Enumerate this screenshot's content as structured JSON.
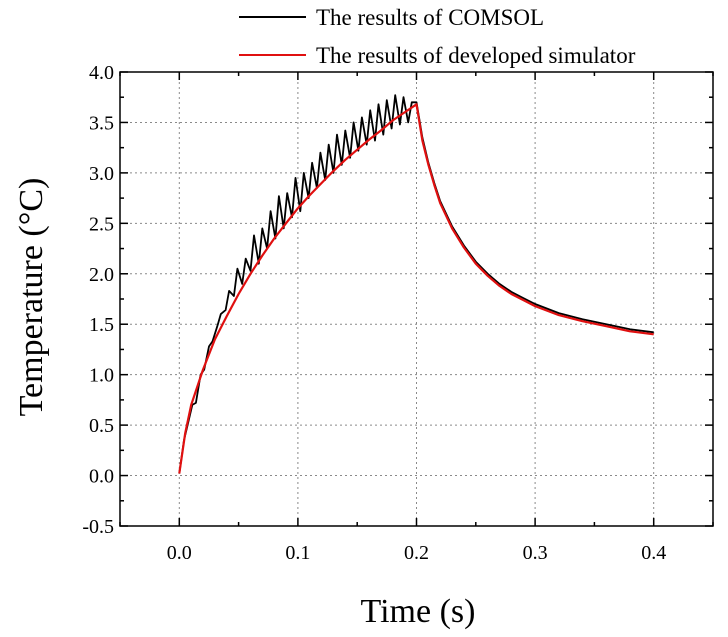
{
  "chart_data": {
    "type": "line",
    "title": "",
    "xlabel": "Time (s)",
    "ylabel": "Temperature (°C)",
    "xlim": [
      -0.05,
      0.45
    ],
    "ylim": [
      -0.5,
      4.0
    ],
    "x_ticks": [
      0.0,
      0.1,
      0.2,
      0.3,
      0.4
    ],
    "x_tick_labels": [
      "0.0",
      "0.1",
      "0.2",
      "0.3",
      "0.4"
    ],
    "y_ticks": [
      -0.5,
      0.0,
      0.5,
      1.0,
      1.5,
      2.0,
      2.5,
      3.0,
      3.5,
      4.0
    ],
    "y_tick_labels": [
      "-0.5",
      "0.0",
      "0.5",
      "1.0",
      "1.5",
      "2.0",
      "2.5",
      "3.0",
      "3.5",
      "4.0"
    ],
    "grid": true,
    "legend_position": "top-right",
    "series": [
      {
        "name": "The results of COMSOL",
        "color": "#000000",
        "x": [
          0.0,
          0.004,
          0.007,
          0.011,
          0.014,
          0.018,
          0.021,
          0.025,
          0.028,
          0.032,
          0.035,
          0.039,
          0.042,
          0.046,
          0.049,
          0.053,
          0.056,
          0.06,
          0.063,
          0.067,
          0.07,
          0.074,
          0.077,
          0.081,
          0.084,
          0.088,
          0.091,
          0.095,
          0.098,
          0.102,
          0.105,
          0.109,
          0.112,
          0.116,
          0.119,
          0.123,
          0.126,
          0.13,
          0.133,
          0.137,
          0.14,
          0.144,
          0.147,
          0.151,
          0.154,
          0.158,
          0.161,
          0.165,
          0.168,
          0.172,
          0.175,
          0.179,
          0.182,
          0.186,
          0.189,
          0.193,
          0.196,
          0.2,
          0.205,
          0.21,
          0.215,
          0.22,
          0.23,
          0.24,
          0.25,
          0.26,
          0.27,
          0.28,
          0.29,
          0.3,
          0.32,
          0.34,
          0.36,
          0.38,
          0.4
        ],
        "y": [
          0.02,
          0.35,
          0.5,
          0.7,
          0.72,
          1.0,
          1.05,
          1.28,
          1.33,
          1.48,
          1.6,
          1.64,
          1.83,
          1.78,
          2.05,
          1.9,
          2.15,
          2.03,
          2.38,
          2.1,
          2.45,
          2.25,
          2.62,
          2.35,
          2.77,
          2.45,
          2.8,
          2.56,
          2.95,
          2.62,
          3.0,
          2.75,
          3.1,
          2.85,
          3.2,
          2.93,
          3.28,
          3.0,
          3.38,
          3.08,
          3.42,
          3.15,
          3.5,
          3.22,
          3.55,
          3.28,
          3.62,
          3.32,
          3.68,
          3.38,
          3.72,
          3.44,
          3.77,
          3.48,
          3.75,
          3.5,
          3.7,
          3.7,
          3.35,
          3.1,
          2.9,
          2.72,
          2.47,
          2.28,
          2.12,
          2.0,
          1.9,
          1.82,
          1.76,
          1.7,
          1.61,
          1.55,
          1.5,
          1.45,
          1.42
        ]
      },
      {
        "name": "The results of developed simulator",
        "color": "#e01010",
        "x": [
          0.0,
          0.005,
          0.01,
          0.02,
          0.03,
          0.04,
          0.05,
          0.06,
          0.07,
          0.08,
          0.09,
          0.1,
          0.11,
          0.12,
          0.13,
          0.14,
          0.15,
          0.16,
          0.17,
          0.18,
          0.19,
          0.2,
          0.205,
          0.21,
          0.215,
          0.22,
          0.23,
          0.24,
          0.25,
          0.26,
          0.27,
          0.28,
          0.29,
          0.3,
          0.32,
          0.34,
          0.36,
          0.38,
          0.4
        ],
        "y": [
          0.02,
          0.42,
          0.7,
          1.05,
          1.35,
          1.58,
          1.8,
          2.0,
          2.18,
          2.35,
          2.5,
          2.65,
          2.78,
          2.9,
          3.02,
          3.13,
          3.23,
          3.33,
          3.42,
          3.52,
          3.6,
          3.68,
          3.32,
          3.08,
          2.88,
          2.7,
          2.45,
          2.26,
          2.1,
          1.98,
          1.88,
          1.8,
          1.74,
          1.68,
          1.59,
          1.53,
          1.48,
          1.43,
          1.4
        ]
      }
    ]
  }
}
